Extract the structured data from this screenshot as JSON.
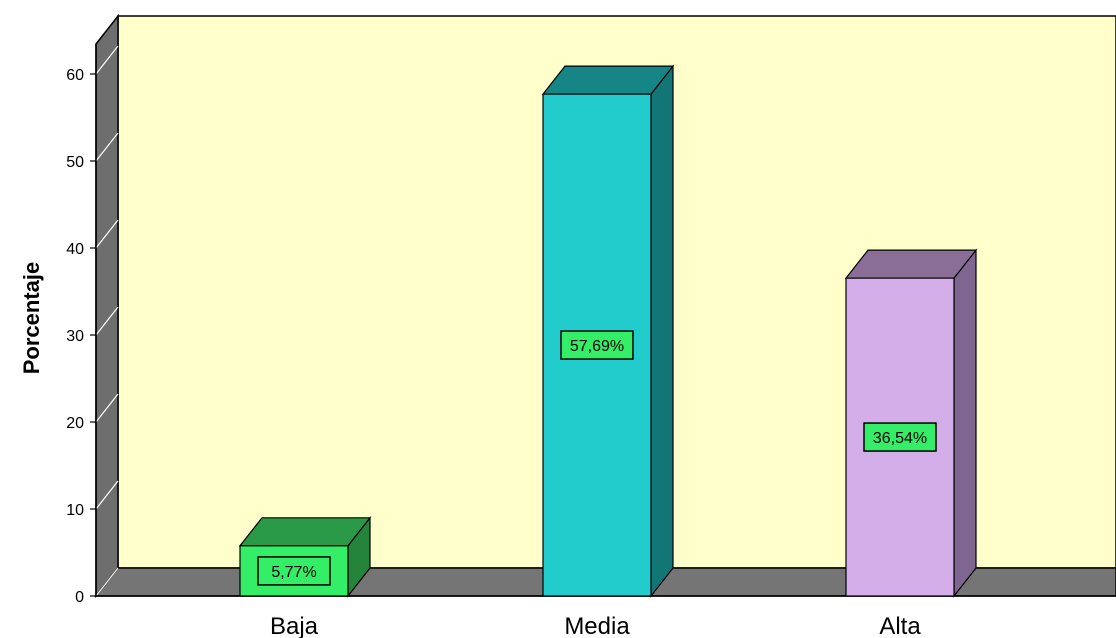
{
  "chart_data": {
    "type": "bar",
    "categories": [
      "Baja",
      "Media",
      "Alta"
    ],
    "values": [
      5.77,
      57.69,
      36.54
    ],
    "data_labels": [
      "5,77%",
      "57,69%",
      "36,54%"
    ],
    "title": "",
    "xlabel": "",
    "ylabel": "Porcentaje",
    "ylim": [
      0,
      65
    ],
    "yticks": [
      0,
      10,
      20,
      30,
      40,
      50,
      60
    ],
    "grid": false,
    "legend": "none",
    "three_d": true,
    "colors": {
      "background_panel": "#ffffcc",
      "wall_side": "#6e6e6e",
      "floor": "#757575",
      "label_box": "#33ee66",
      "bars": [
        {
          "front": "#33ee66",
          "top": "#2a9a48",
          "side": "#24843c"
        },
        {
          "front": "#22cccc",
          "top": "#158585",
          "side": "#127676"
        },
        {
          "front": "#d3aee8",
          "top": "#8a6e98",
          "side": "#7e6690"
        }
      ]
    }
  }
}
